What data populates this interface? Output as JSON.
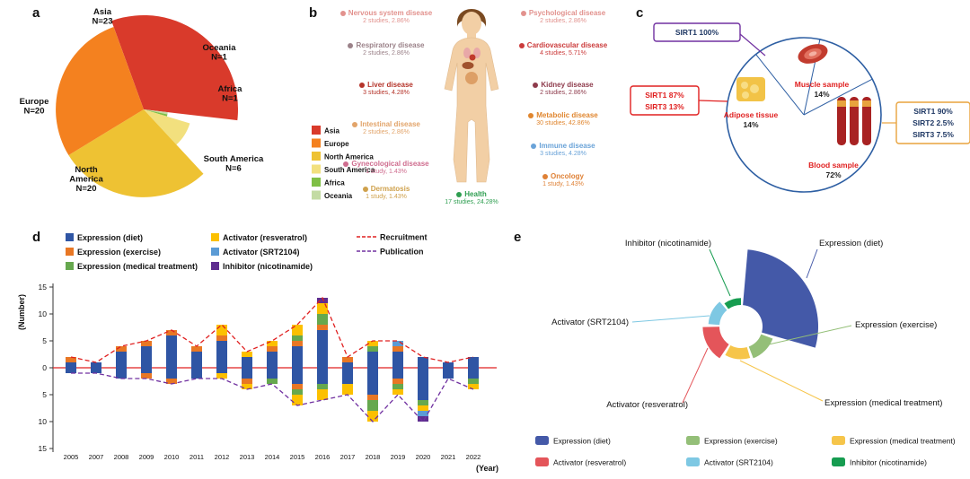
{
  "figure": {
    "panel_labels": {
      "a": "a",
      "b": "b",
      "c": "c",
      "d": "d",
      "e": "e"
    }
  },
  "chart_data": [
    {
      "id": "continent-rose",
      "type": "pie",
      "variant": "nightingale-rose",
      "categories": [
        "Asia",
        "Europe",
        "North America",
        "South America",
        "Africa",
        "Oceania"
      ],
      "values": [
        23,
        20,
        20,
        6,
        1,
        1
      ],
      "value_labels": [
        "N=23",
        "N=20",
        "N=20",
        "N=6",
        "N=1",
        "N=1"
      ],
      "wrap": [
        false,
        false,
        true,
        false,
        false,
        false
      ],
      "colors": [
        "#d93a2b",
        "#f4811f",
        "#eec233",
        "#f2e07e",
        "#7fbf45",
        "#c3dba3"
      ],
      "legend_items": [
        "Asia",
        "Europe",
        "North America",
        "South America",
        "Africa",
        "Oceania"
      ],
      "legend_position": "right"
    },
    {
      "id": "disease-body-map",
      "type": "table",
      "left_items": [
        {
          "name": "Nervous system disease",
          "detail": "2 studies, 2.86%",
          "color": "#e2928e",
          "icon": "brain-icon"
        },
        {
          "name": "Respiratory disease",
          "detail": "2 studies, 2.86%",
          "color": "#9b8289",
          "icon": "lungs-icon"
        },
        {
          "name": "Liver disease",
          "detail": "3 studies, 4.28%",
          "color": "#b5342a",
          "icon": "liver-icon"
        },
        {
          "name": "Intestinal disease",
          "detail": "2 studies, 2.86%",
          "color": "#e2a46a",
          "icon": "intestine-icon"
        },
        {
          "name": "Gynecological disease",
          "detail": "1 study, 1.43%",
          "color": "#cf6d8f",
          "icon": "uterus-icon"
        },
        {
          "name": "Dermatosis",
          "detail": "1 study, 1.43%",
          "color": "#cfa14c",
          "icon": "skin-icon"
        }
      ],
      "right_items": [
        {
          "name": "Psychological disease",
          "detail": "2 studies, 2.86%",
          "color": "#e2928e",
          "icon": "brain-icon"
        },
        {
          "name": "Cardiovascular disease",
          "detail": "4 studies, 5.71%",
          "color": "#cb3b3b",
          "icon": "heart-icon"
        },
        {
          "name": "Kidney disease",
          "detail": "2 studies, 2.86%",
          "color": "#8e3b4c",
          "icon": "kidney-icon"
        },
        {
          "name": "Metabolic disease",
          "detail": "30 studies, 42.86%",
          "color": "#e0862f",
          "icon": "cells-icon"
        },
        {
          "name": "Immune disease",
          "detail": "3 studies, 4.28%",
          "color": "#6aa3d8",
          "icon": "antibody-icon"
        },
        {
          "name": "Oncology",
          "detail": "1 study, 1.43%",
          "color": "#df8136",
          "icon": "ribbon-icon"
        }
      ],
      "bottom_item": {
        "name": "Health",
        "detail": "17 studies, 24.28%",
        "color": "#2e9e50",
        "icon": "health-icon"
      }
    },
    {
      "id": "sample-type-pie",
      "type": "pie",
      "categories": [
        "Muscle sample",
        "Adipose tissue",
        "Blood sample"
      ],
      "values": [
        14,
        14,
        72
      ],
      "pct_labels": [
        "14%",
        "14%",
        "72%"
      ],
      "label_color": "#e02020",
      "outline_color": "#2e5fa3",
      "callouts": [
        {
          "target": "Muscle sample",
          "border_color": "#7030a0",
          "text_color": "#1f3864",
          "lines": [
            "SIRT1  100%"
          ]
        },
        {
          "target": "Adipose tissue",
          "border_color": "#e02020",
          "text_color": "#e02020",
          "lines": [
            "SIRT1  87%",
            "SIRT3  13%"
          ]
        },
        {
          "target": "Blood sample",
          "border_color": "#e8a33d",
          "text_color": "#1f3864",
          "lines": [
            "SIRT1  90%",
            "SIRT2  2.5%",
            "SIRT3  7.5%"
          ]
        }
      ]
    },
    {
      "id": "trials-by-year",
      "type": "bar",
      "stacked": true,
      "diverging": true,
      "ylabel": "(Number)",
      "xlabel": "(Year)",
      "ylim": [
        -15,
        15
      ],
      "yticks": [
        "15",
        "10",
        "5",
        "0",
        "5",
        "10",
        "15"
      ],
      "x": [
        "2005",
        "2007",
        "2008",
        "2009",
        "2010",
        "2011",
        "2012",
        "2013",
        "2014",
        "2015",
        "2016",
        "2017",
        "2018",
        "2019",
        "2020",
        "2021",
        "2022"
      ],
      "series_up": [
        {
          "name": "Expression (diet)",
          "color": "#2f55a4",
          "values": [
            1,
            1,
            3,
            4,
            6,
            3,
            5,
            2,
            3,
            4,
            7,
            1,
            3,
            3,
            2,
            1,
            2
          ]
        },
        {
          "name": "Expression (exercise)",
          "color": "#e87724",
          "values": [
            1,
            0,
            1,
            1,
            1,
            1,
            1,
            0,
            1,
            1,
            1,
            1,
            0,
            1,
            0,
            0,
            0
          ]
        },
        {
          "name": "Expression (medical treatment)",
          "color": "#66a84e",
          "values": [
            0,
            0,
            0,
            0,
            0,
            0,
            0,
            0,
            0,
            1,
            2,
            0,
            1,
            0,
            0,
            0,
            0
          ]
        },
        {
          "name": "Activator (resveratrol)",
          "color": "#fcc000",
          "values": [
            0,
            0,
            0,
            0,
            0,
            0,
            2,
            1,
            1,
            2,
            2,
            0,
            1,
            0,
            0,
            0,
            0
          ]
        },
        {
          "name": "Activator (SRT2104)",
          "color": "#5b9bd5",
          "values": [
            0,
            0,
            0,
            0,
            0,
            0,
            0,
            0,
            0,
            0,
            0,
            0,
            0,
            1,
            0,
            0,
            0
          ]
        },
        {
          "name": "Inhibitor (nicotinamide)",
          "color": "#5e2d8f",
          "values": [
            0,
            0,
            0,
            0,
            0,
            0,
            0,
            0,
            0,
            0,
            1,
            0,
            0,
            0,
            0,
            0,
            0
          ]
        }
      ],
      "series_down": [
        {
          "name": "Expression (diet)",
          "color": "#2f55a4",
          "values": [
            1,
            1,
            2,
            1,
            2,
            2,
            1,
            2,
            2,
            3,
            3,
            3,
            5,
            2,
            6,
            2,
            2
          ]
        },
        {
          "name": "Expression (exercise)",
          "color": "#e87724",
          "values": [
            0,
            0,
            0,
            1,
            1,
            0,
            0,
            1,
            0,
            1,
            0,
            0,
            1,
            1,
            0,
            0,
            0
          ]
        },
        {
          "name": "Expression (medical treatment)",
          "color": "#66a84e",
          "values": [
            0,
            0,
            0,
            0,
            0,
            0,
            0,
            0,
            1,
            1,
            1,
            0,
            2,
            1,
            1,
            0,
            1
          ]
        },
        {
          "name": "Activator (resveratrol)",
          "color": "#fcc000",
          "values": [
            0,
            0,
            0,
            0,
            0,
            0,
            1,
            1,
            0,
            2,
            2,
            2,
            2,
            1,
            1,
            0,
            1
          ]
        },
        {
          "name": "Activator (SRT2104)",
          "color": "#5b9bd5",
          "values": [
            0,
            0,
            0,
            0,
            0,
            0,
            0,
            0,
            0,
            0,
            0,
            0,
            0,
            0,
            1,
            0,
            0
          ]
        },
        {
          "name": "Inhibitor (nicotinamide)",
          "color": "#5e2d8f",
          "values": [
            0,
            0,
            0,
            0,
            0,
            0,
            0,
            0,
            0,
            0,
            0,
            0,
            0,
            0,
            1,
            0,
            0
          ]
        }
      ],
      "lines": [
        {
          "name": "Recruitment",
          "color": "#e02020",
          "dash": true
        },
        {
          "name": "Publication",
          "color": "#7030a0",
          "dash": true
        }
      ]
    },
    {
      "id": "intervention-polar",
      "type": "pie",
      "variant": "polar-segments",
      "categories": [
        "Expression (diet)",
        "Expression (exercise)",
        "Expression (medical treatment)",
        "Activator (resveratrol)",
        "Activator (SRT2104)",
        "Inhibitor (nicotinamide)"
      ],
      "values": [
        40,
        9,
        8,
        12,
        8,
        5
      ],
      "colors": [
        "#4459a8",
        "#94bf78",
        "#f6c54a",
        "#e4555a",
        "#7ec8e3",
        "#169c50"
      ]
    }
  ]
}
